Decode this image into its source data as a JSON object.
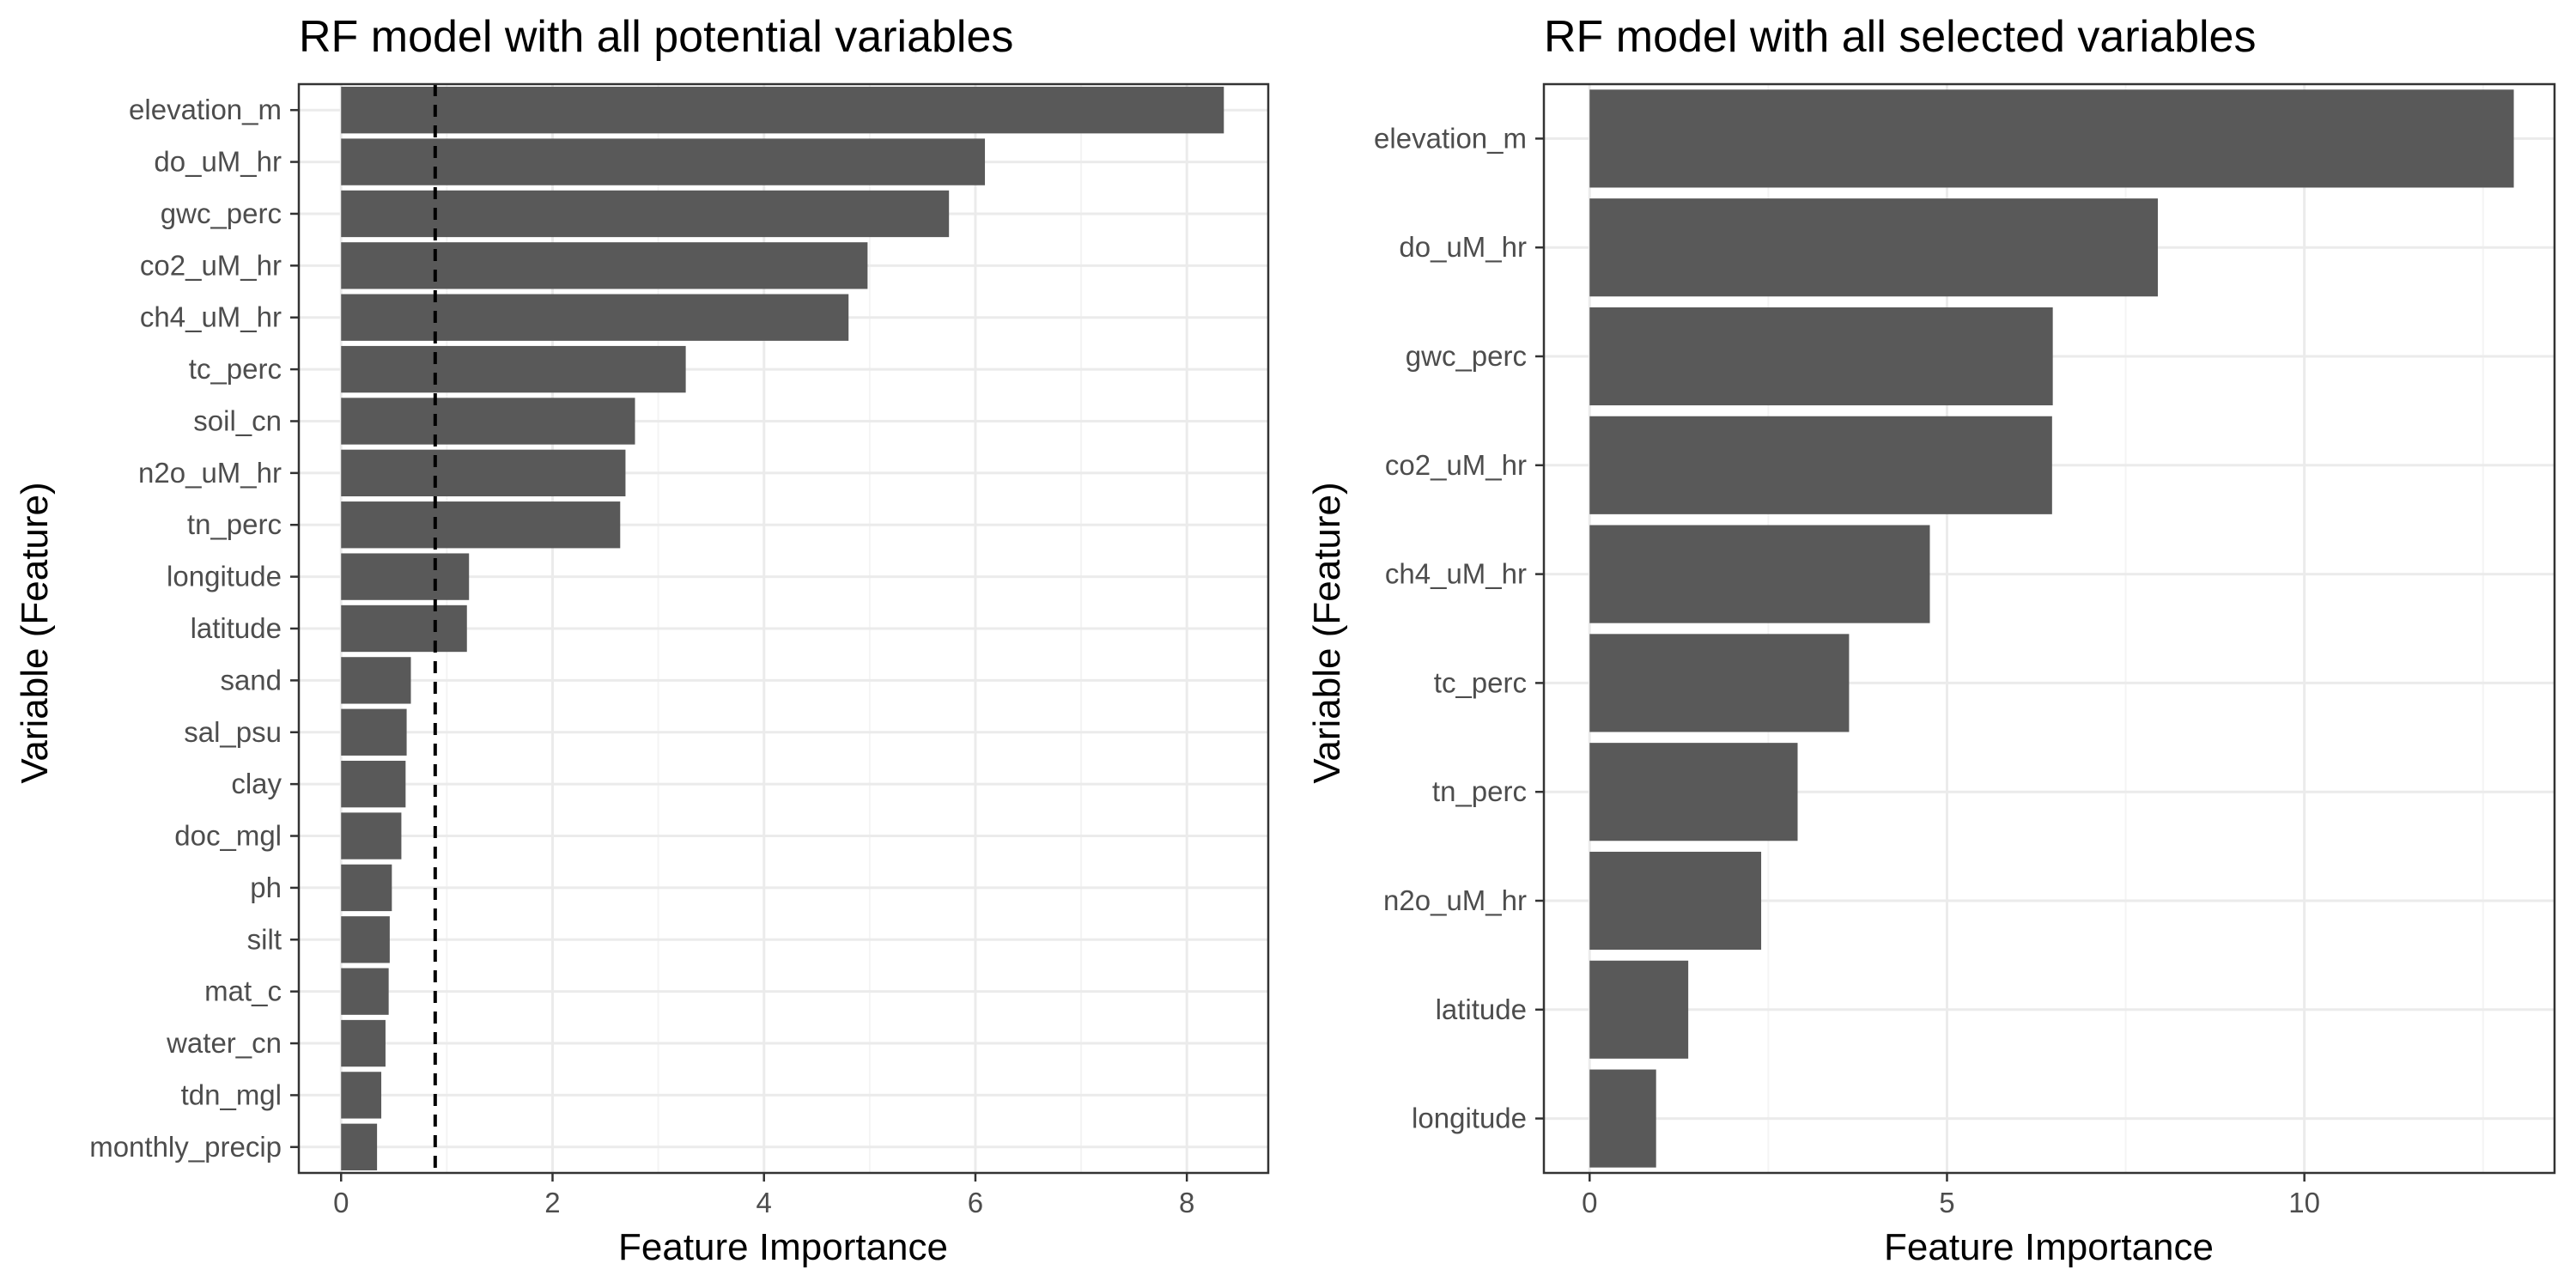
{
  "colors": {
    "bar": "#595959",
    "panel_border": "#333333",
    "grid_major": "#ebebeb",
    "grid_minor": "#f4f4f4",
    "tick": "#333333",
    "cutoff_line": "#000000"
  },
  "chart_data": [
    {
      "type": "bar",
      "orientation": "horizontal",
      "title": "RF model with all potential variables",
      "xlabel": "Feature Importance",
      "ylabel": "Variable (Feature)",
      "xlim": [
        -0.4,
        8.77
      ],
      "xticks": [
        0,
        2,
        4,
        6,
        8
      ],
      "grid": true,
      "reference_line": {
        "x": 0.89,
        "style": "dashed"
      },
      "categories": [
        "elevation_m",
        "do_uM_hr",
        "gwc_perc",
        "co2_uM_hr",
        "ch4_uM_hr",
        "tc_perc",
        "soil_cn",
        "n2o_uM_hr",
        "tn_perc",
        "longitude",
        "latitude",
        "sand",
        "sal_psu",
        "clay",
        "doc_mgl",
        "ph",
        "silt",
        "mat_c",
        "water_cn",
        "tdn_mgl",
        "monthly_precip"
      ],
      "values": [
        8.35,
        6.09,
        5.75,
        4.98,
        4.8,
        3.26,
        2.78,
        2.69,
        2.64,
        1.21,
        1.19,
        0.66,
        0.62,
        0.61,
        0.57,
        0.48,
        0.46,
        0.45,
        0.42,
        0.38,
        0.34
      ]
    },
    {
      "type": "bar",
      "orientation": "horizontal",
      "title": "RF model with all selected variables",
      "xlabel": "Feature Importance",
      "ylabel": "Variable (Feature)",
      "xlim": [
        -0.64,
        13.5
      ],
      "xticks": [
        0,
        5,
        10
      ],
      "grid": true,
      "categories": [
        "elevation_m",
        "do_uM_hr",
        "gwc_perc",
        "co2_uM_hr",
        "ch4_uM_hr",
        "tc_perc",
        "tn_perc",
        "n2o_uM_hr",
        "latitude",
        "longitude"
      ],
      "values": [
        12.93,
        7.95,
        6.48,
        6.47,
        4.76,
        3.63,
        2.91,
        2.4,
        1.38,
        0.93
      ]
    }
  ]
}
